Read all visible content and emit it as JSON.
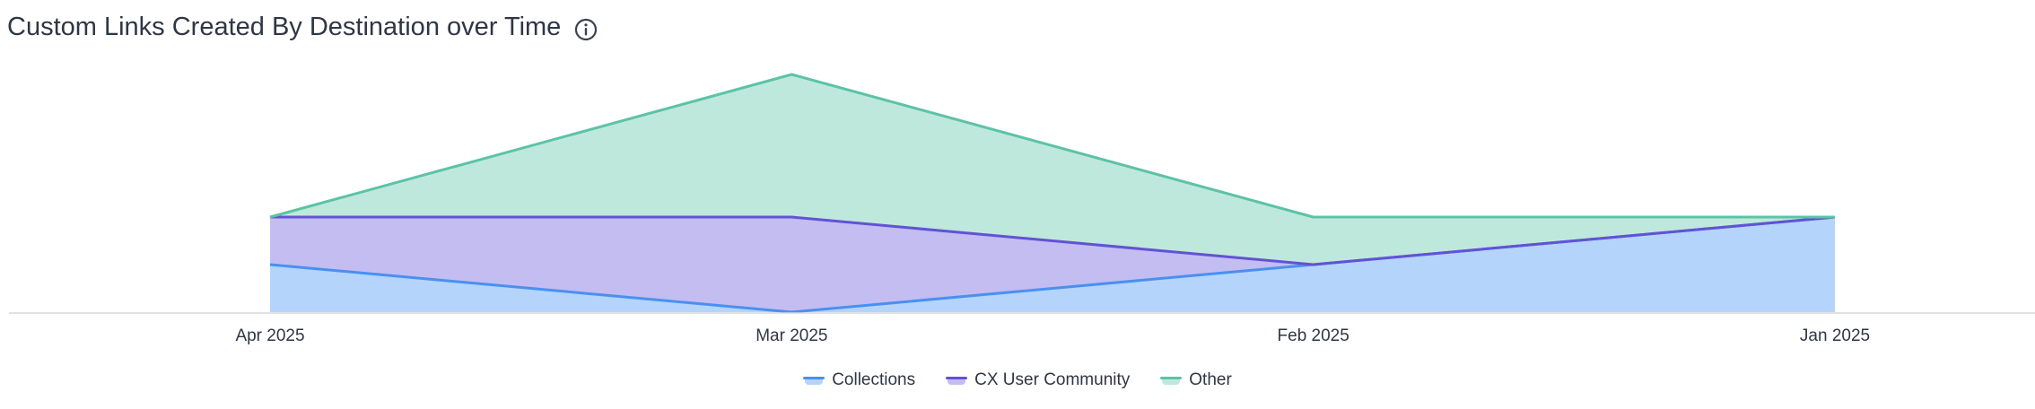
{
  "header": {
    "title": "Custom Links Created By Destination over Time",
    "info_icon": "info-icon"
  },
  "chart_data": {
    "type": "area",
    "stacked": true,
    "categories": [
      "Apr 2025",
      "Mar 2025",
      "Feb 2025",
      "Jan 2025"
    ],
    "series": [
      {
        "name": "Collections",
        "values": [
          1,
          0,
          1,
          2
        ],
        "color": "#4a90f0",
        "fill": "#b4d4fb"
      },
      {
        "name": "CX User Community",
        "values": [
          1,
          2,
          0,
          0
        ],
        "color": "#6252d6",
        "fill": "#c3bdf2"
      },
      {
        "name": "Other",
        "values": [
          0,
          3,
          1,
          0
        ],
        "color": "#5cc3a5",
        "fill": "#bfe8dc"
      }
    ],
    "ylim": [
      0,
      5
    ],
    "y_axis_visible": false,
    "grid": false,
    "legend_position": "bottom-center"
  }
}
